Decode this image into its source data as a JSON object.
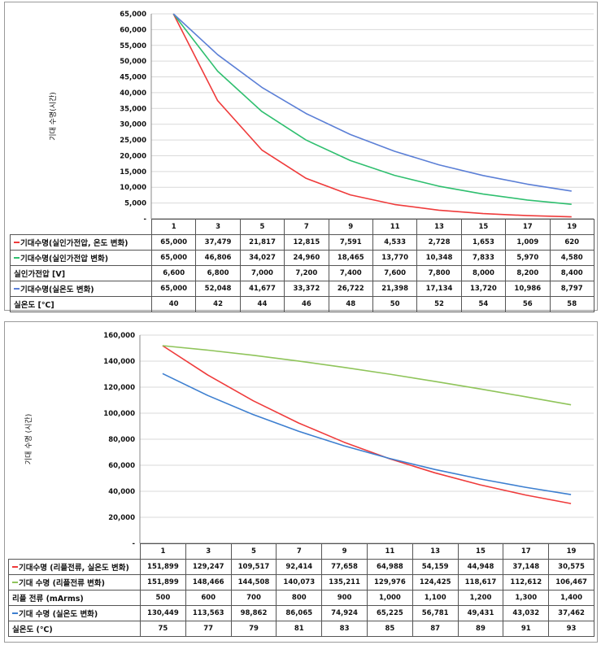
{
  "chart_data": [
    {
      "type": "line",
      "ylabel": "기대 수명(시간)",
      "ylim": [
        0,
        65000
      ],
      "yticks": [
        "-",
        "5,000",
        "10,000",
        "15,000",
        "20,000",
        "25,000",
        "30,000",
        "35,000",
        "40,000",
        "45,000",
        "50,000",
        "55,000",
        "60,000",
        "65,000"
      ],
      "categories": [
        "1",
        "3",
        "5",
        "7",
        "9",
        "11",
        "13",
        "15",
        "17",
        "19"
      ],
      "series": [
        {
          "name": "기대수명(실인가전압, 온도 변화)",
          "color": "#ef3b3b",
          "values": [
            65000,
            37479,
            21817,
            12815,
            7591,
            4533,
            2728,
            1653,
            1009,
            620
          ],
          "labels": [
            "65,000",
            "37,479",
            "21,817",
            "12,815",
            "7,591",
            "4,533",
            "2,728",
            "1,653",
            "1,009",
            "620"
          ]
        },
        {
          "name": "기대수명(실인가전압 변화)",
          "color": "#2fbf6f",
          "values": [
            65000,
            46806,
            34027,
            24960,
            18465,
            13770,
            10348,
            7833,
            5970,
            4580
          ],
          "labels": [
            "65,000",
            "46,806",
            "34,027",
            "24,960",
            "18,465",
            "13,770",
            "10,348",
            "7,833",
            "5,970",
            "4,580"
          ]
        },
        {
          "name": "기대수명(실온도 변화)",
          "color": "#5b7fd6",
          "values": [
            65000,
            52048,
            41677,
            33372,
            26722,
            21398,
            17134,
            13720,
            10986,
            8797
          ],
          "labels": [
            "65,000",
            "52,048",
            "41,677",
            "33,372",
            "26,722",
            "21,398",
            "17,134",
            "13,720",
            "10,986",
            "8,797"
          ]
        }
      ],
      "table_rows": [
        {
          "label": "기대수명(실인가전압, 온도 변화)",
          "series": 0
        },
        {
          "label": "기대수명(실인가전압 변화)",
          "series": 1
        },
        {
          "label": "실인가전압 [V]",
          "cells": [
            "6,600",
            "6,800",
            "7,000",
            "7,200",
            "7,400",
            "7,600",
            "7,800",
            "8,000",
            "8,200",
            "8,400"
          ]
        },
        {
          "label": "기대수명(실온도 변화)",
          "series": 2
        },
        {
          "label": "실온도 [℃]",
          "cells": [
            "40",
            "42",
            "44",
            "46",
            "48",
            "50",
            "52",
            "54",
            "56",
            "58"
          ]
        }
      ]
    },
    {
      "type": "line",
      "ylabel": "기대 수명 (시간)",
      "ylim": [
        0,
        160000
      ],
      "yticks": [
        "-",
        "20,000",
        "40,000",
        "60,000",
        "80,000",
        "100,000",
        "120,000",
        "140,000",
        "160,000"
      ],
      "categories": [
        "1",
        "3",
        "5",
        "7",
        "9",
        "11",
        "13",
        "15",
        "17",
        "19"
      ],
      "series": [
        {
          "name": "기대수명 (리플전류, 실온도 변화)",
          "color": "#ef3b3b",
          "values": [
            151899,
            129247,
            109517,
            92414,
            77658,
            64988,
            54159,
            44948,
            37148,
            30575
          ],
          "labels": [
            "151,899",
            "129,247",
            "109,517",
            "92,414",
            "77,658",
            "64,988",
            "54,159",
            "44,948",
            "37,148",
            "30,575"
          ]
        },
        {
          "name": "기대 수명 (리플전류 변화)",
          "color": "#8fc45a",
          "values": [
            151899,
            148466,
            144508,
            140073,
            135211,
            129976,
            124425,
            118617,
            112612,
            106467
          ],
          "labels": [
            "151,899",
            "148,466",
            "144,508",
            "140,073",
            "135,211",
            "129,976",
            "124,425",
            "118,617",
            "112,612",
            "106,467"
          ]
        },
        {
          "name": "기대 수명 (실온도 변화)",
          "color": "#3d7fd0",
          "values": [
            130449,
            113563,
            98862,
            86065,
            74924,
            65225,
            56781,
            49431,
            43032,
            37462
          ],
          "labels": [
            "130,449",
            "113,563",
            "98,862",
            "86,065",
            "74,924",
            "65,225",
            "56,781",
            "49,431",
            "43,032",
            "37,462"
          ]
        }
      ],
      "table_rows": [
        {
          "label": "기대수명 (리플전류, 실온도 변화)",
          "series": 0
        },
        {
          "label": "기대 수명 (리플전류 변화)",
          "series": 1
        },
        {
          "label": "리플 전류 (mArms)",
          "cells": [
            "500",
            "600",
            "700",
            "800",
            "900",
            "1,000",
            "1,100",
            "1,200",
            "1,300",
            "1,400"
          ]
        },
        {
          "label": "기대 수명 (실온도 변화)",
          "series": 2
        },
        {
          "label": "실온도 (℃)",
          "cells": [
            "75",
            "77",
            "79",
            "81",
            "83",
            "85",
            "87",
            "89",
            "91",
            "93"
          ]
        }
      ]
    }
  ]
}
